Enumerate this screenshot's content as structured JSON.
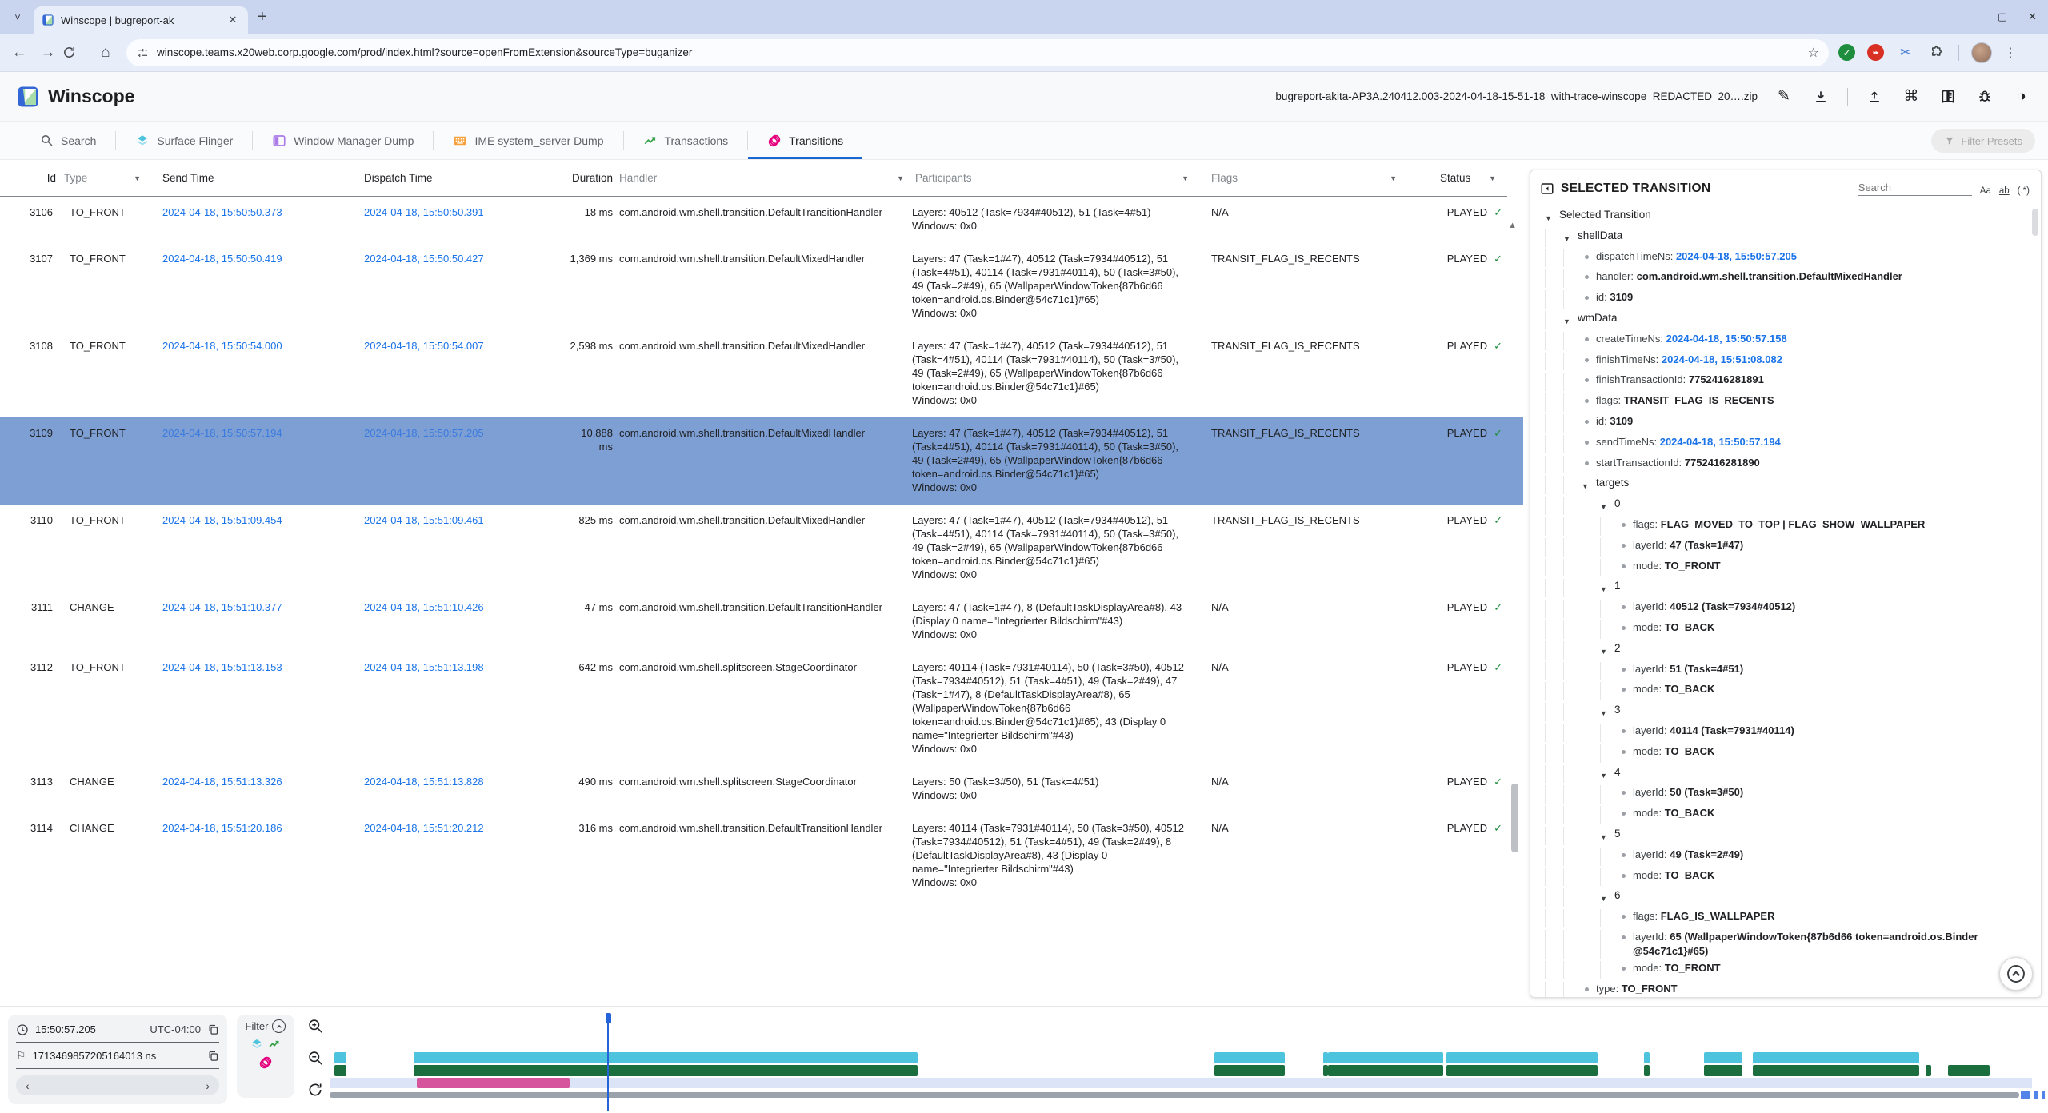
{
  "browser": {
    "tab_title": "Winscope | bugreport-ak",
    "url": "winscope.teams.x20web.corp.google.com/prod/index.html?source=openFromExtension&sourceType=buganizer"
  },
  "header": {
    "app_title": "Winscope",
    "trace_file": "bugreport-akita-AP3A.240412.003-2024-04-18-15-51-18_with-trace-winscope_REDACTED_20….zip"
  },
  "tabs": {
    "items": [
      {
        "label": "Search"
      },
      {
        "label": "Surface Flinger"
      },
      {
        "label": "Window Manager Dump"
      },
      {
        "label": "IME system_server Dump"
      },
      {
        "label": "Transactions"
      },
      {
        "label": "Transitions",
        "active": true
      }
    ],
    "filter_presets": "Filter Presets"
  },
  "table": {
    "columns": [
      "Id",
      "Type",
      "Send Time",
      "Dispatch Time",
      "Duration",
      "Handler",
      "Participants",
      "Flags",
      "Status"
    ],
    "rows": [
      {
        "id": "3106",
        "type": "TO_FRONT",
        "send": "2024-04-18, 15:50:50.373",
        "dispatch": "2024-04-18, 15:50:50.391",
        "duration": "18 ms",
        "handler": "com.android.wm.shell.transition.DefaultTransitionHandler",
        "layers": "Layers: 40512 (Task=7934#40512), 51 (Task=4#51)",
        "windows": "Windows: 0x0",
        "flags": "N/A",
        "status": "PLAYED"
      },
      {
        "id": "3107",
        "type": "TO_FRONT",
        "send": "2024-04-18, 15:50:50.419",
        "dispatch": "2024-04-18, 15:50:50.427",
        "duration": "1,369 ms",
        "handler": "com.android.wm.shell.transition.DefaultMixedHandler",
        "layers": "Layers: 47 (Task=1#47), 40512 (Task=7934#40512), 51 (Task=4#51), 40114 (Task=7931#40114), 50 (Task=3#50), 49 (Task=2#49), 65 (WallpaperWindowToken{87b6d66 token=android.os.Binder@54c71c1}#65)",
        "windows": "Windows: 0x0",
        "flags": "TRANSIT_FLAG_IS_RECENTS",
        "status": "PLAYED"
      },
      {
        "id": "3108",
        "type": "TO_FRONT",
        "send": "2024-04-18, 15:50:54.000",
        "dispatch": "2024-04-18, 15:50:54.007",
        "duration": "2,598 ms",
        "handler": "com.android.wm.shell.transition.DefaultMixedHandler",
        "layers": "Layers: 47 (Task=1#47), 40512 (Task=7934#40512), 51 (Task=4#51), 40114 (Task=7931#40114), 50 (Task=3#50), 49 (Task=2#49), 65 (WallpaperWindowToken{87b6d66 token=android.os.Binder@54c71c1}#65)",
        "windows": "Windows: 0x0",
        "flags": "TRANSIT_FLAG_IS_RECENTS",
        "status": "PLAYED"
      },
      {
        "id": "3109",
        "type": "TO_FRONT",
        "send": "2024-04-18, 15:50:57.194",
        "dispatch": "2024-04-18, 15:50:57.205",
        "duration": "10,888 ms",
        "handler": "com.android.wm.shell.transition.DefaultMixedHandler",
        "layers": "Layers: 47 (Task=1#47), 40512 (Task=7934#40512), 51 (Task=4#51), 40114 (Task=7931#40114), 50 (Task=3#50), 49 (Task=2#49), 65 (WallpaperWindowToken{87b6d66 token=android.os.Binder@54c71c1}#65)",
        "windows": "Windows: 0x0",
        "flags": "TRANSIT_FLAG_IS_RECENTS",
        "status": "PLAYED",
        "selected": true
      },
      {
        "id": "3110",
        "type": "TO_FRONT",
        "send": "2024-04-18, 15:51:09.454",
        "dispatch": "2024-04-18, 15:51:09.461",
        "duration": "825 ms",
        "handler": "com.android.wm.shell.transition.DefaultMixedHandler",
        "layers": "Layers: 47 (Task=1#47), 40512 (Task=7934#40512), 51 (Task=4#51), 40114 (Task=7931#40114), 50 (Task=3#50), 49 (Task=2#49), 65 (WallpaperWindowToken{87b6d66 token=android.os.Binder@54c71c1}#65)",
        "windows": "Windows: 0x0",
        "flags": "TRANSIT_FLAG_IS_RECENTS",
        "status": "PLAYED"
      },
      {
        "id": "3111",
        "type": "CHANGE",
        "send": "2024-04-18, 15:51:10.377",
        "dispatch": "2024-04-18, 15:51:10.426",
        "duration": "47 ms",
        "handler": "com.android.wm.shell.transition.DefaultTransitionHandler",
        "layers": "Layers: 47 (Task=1#47), 8 (DefaultTaskDisplayArea#8), 43 (Display 0 name=\"Integrierter Bildschirm\"#43)",
        "windows": "Windows: 0x0",
        "flags": "N/A",
        "status": "PLAYED"
      },
      {
        "id": "3112",
        "type": "TO_FRONT",
        "send": "2024-04-18, 15:51:13.153",
        "dispatch": "2024-04-18, 15:51:13.198",
        "duration": "642 ms",
        "handler": "com.android.wm.shell.splitscreen.StageCoordinator",
        "layers": "Layers: 40114 (Task=7931#40114), 50 (Task=3#50), 40512 (Task=7934#40512), 51 (Task=4#51), 49 (Task=2#49), 47 (Task=1#47), 8 (DefaultTaskDisplayArea#8), 65 (WallpaperWindowToken{87b6d66 token=android.os.Binder@54c71c1}#65), 43 (Display 0 name=\"Integrierter Bildschirm\"#43)",
        "windows": "Windows: 0x0",
        "flags": "N/A",
        "status": "PLAYED"
      },
      {
        "id": "3113",
        "type": "CHANGE",
        "send": "2024-04-18, 15:51:13.326",
        "dispatch": "2024-04-18, 15:51:13.828",
        "duration": "490 ms",
        "handler": "com.android.wm.shell.splitscreen.StageCoordinator",
        "layers": "Layers: 50 (Task=3#50), 51 (Task=4#51)",
        "windows": "Windows: 0x0",
        "flags": "N/A",
        "status": "PLAYED"
      },
      {
        "id": "3114",
        "type": "CHANGE",
        "send": "2024-04-18, 15:51:20.186",
        "dispatch": "2024-04-18, 15:51:20.212",
        "duration": "316 ms",
        "handler": "com.android.wm.shell.transition.DefaultTransitionHandler",
        "layers": "Layers: 40114 (Task=7931#40114), 50 (Task=3#50), 40512 (Task=7934#40512), 51 (Task=4#51), 49 (Task=2#49), 8 (DefaultTaskDisplayArea#8), 43 (Display 0 name=\"Integrierter Bildschirm\"#43)",
        "windows": "Windows: 0x0",
        "flags": "N/A",
        "status": "PLAYED"
      }
    ]
  },
  "details": {
    "title": "SELECTED TRANSITION",
    "search_placeholder": "Search",
    "match_case": "Aa",
    "match_word": "ab",
    "regex": "(.*)",
    "tree": [
      {
        "d": 0,
        "exp": true,
        "key": "Selected Transition"
      },
      {
        "d": 1,
        "exp": true,
        "key": "shellData"
      },
      {
        "d": 2,
        "key": "dispatchTimeNs",
        "v": "2024-04-18, 15:50:57.205",
        "t": true
      },
      {
        "d": 2,
        "key": "handler",
        "v": "com.android.wm.shell.transition.DefaultMixedHandler"
      },
      {
        "d": 2,
        "key": "id",
        "v": "3109"
      },
      {
        "d": 1,
        "exp": true,
        "key": "wmData"
      },
      {
        "d": 2,
        "key": "createTimeNs",
        "v": "2024-04-18, 15:50:57.158",
        "t": true
      },
      {
        "d": 2,
        "key": "finishTimeNs",
        "v": "2024-04-18, 15:51:08.082",
        "t": true
      },
      {
        "d": 2,
        "key": "finishTransactionId",
        "v": "7752416281891"
      },
      {
        "d": 2,
        "key": "flags",
        "v": "TRANSIT_FLAG_IS_RECENTS"
      },
      {
        "d": 2,
        "key": "id",
        "v": "3109"
      },
      {
        "d": 2,
        "key": "sendTimeNs",
        "v": "2024-04-18, 15:50:57.194",
        "t": true
      },
      {
        "d": 2,
        "key": "startTransactionId",
        "v": "7752416281890"
      },
      {
        "d": 2,
        "exp": true,
        "key": "targets"
      },
      {
        "d": 3,
        "exp": true,
        "key": "0"
      },
      {
        "d": 4,
        "key": "flags",
        "v": "FLAG_MOVED_TO_TOP | FLAG_SHOW_WALLPAPER"
      },
      {
        "d": 4,
        "key": "layerId",
        "v": "47 (Task=1#47)"
      },
      {
        "d": 4,
        "key": "mode",
        "v": "TO_FRONT"
      },
      {
        "d": 3,
        "exp": true,
        "key": "1"
      },
      {
        "d": 4,
        "key": "layerId",
        "v": "40512 (Task=7934#40512)"
      },
      {
        "d": 4,
        "key": "mode",
        "v": "TO_BACK"
      },
      {
        "d": 3,
        "exp": true,
        "key": "2"
      },
      {
        "d": 4,
        "key": "layerId",
        "v": "51 (Task=4#51)"
      },
      {
        "d": 4,
        "key": "mode",
        "v": "TO_BACK"
      },
      {
        "d": 3,
        "exp": true,
        "key": "3"
      },
      {
        "d": 4,
        "key": "layerId",
        "v": "40114 (Task=7931#40114)"
      },
      {
        "d": 4,
        "key": "mode",
        "v": "TO_BACK"
      },
      {
        "d": 3,
        "exp": true,
        "key": "4"
      },
      {
        "d": 4,
        "key": "layerId",
        "v": "50 (Task=3#50)"
      },
      {
        "d": 4,
        "key": "mode",
        "v": "TO_BACK"
      },
      {
        "d": 3,
        "exp": true,
        "key": "5"
      },
      {
        "d": 4,
        "key": "layerId",
        "v": "49 (Task=2#49)"
      },
      {
        "d": 4,
        "key": "mode",
        "v": "TO_BACK"
      },
      {
        "d": 3,
        "exp": true,
        "key": "6"
      },
      {
        "d": 4,
        "key": "flags",
        "v": "FLAG_IS_WALLPAPER"
      },
      {
        "d": 4,
        "key": "layerId",
        "v": "65 (WallpaperWindowToken{87b6d66 token=android.os.Binder @54c71c1}#65)"
      },
      {
        "d": 4,
        "key": "mode",
        "v": "TO_FRONT"
      },
      {
        "d": 2,
        "key": "type",
        "v": "TO_FRONT"
      }
    ]
  },
  "timeline": {
    "current_time": "15:50:57.205",
    "timezone": "UTC-04:00",
    "timestamp_ns": "1713469857205164013 ns",
    "filter_label": "Filter",
    "cursor": 0.1615,
    "segments": [
      {
        "s": 0.003,
        "e": 0.01,
        "c": 1,
        "g": 1
      },
      {
        "s": 0.049,
        "e": 0.342,
        "c": 1,
        "g": 1
      },
      {
        "s": 0.515,
        "e": 0.556,
        "c": 1,
        "g": 1
      },
      {
        "s": 0.578,
        "e": 0.581,
        "c": 1,
        "g": 1
      },
      {
        "s": 0.581,
        "e": 0.648,
        "c": 1,
        "g": 1
      },
      {
        "s": 0.65,
        "e": 0.738,
        "c": 1,
        "g": 1
      },
      {
        "s": 0.765,
        "e": 0.768,
        "c": 1,
        "g": 1
      },
      {
        "s": 0.8,
        "e": 0.822,
        "c": 1,
        "g": 1
      },
      {
        "s": 0.828,
        "e": 0.925,
        "c": 1,
        "g": 1
      },
      {
        "s": 0.929,
        "e": 0.932,
        "c": 0,
        "g": 1
      },
      {
        "s": 0.942,
        "e": 0.966,
        "c": 0,
        "g": 1
      }
    ],
    "transition_segments": [
      {
        "s": 0.051,
        "e": 0.141
      }
    ],
    "lavender_end": 0.9907,
    "scroll_end": 0.9832,
    "handle": [
      0.9842,
      0.9892
    ],
    "ticks": [
      0.992,
      0.9965
    ]
  },
  "icons": {
    "back_arrow": "←",
    "forward_arrow": "→",
    "home": "⌂",
    "overflow": "⋮",
    "scissors": "✂",
    "star": "☆",
    "command": "⌘",
    "theme_toggle": "◑",
    "pencil": "✎",
    "minimize": "—",
    "maximize": "▢",
    "close": "✕",
    "tab_close": "✕",
    "new_tab": "+",
    "tab_search_chevron": "˅",
    "flag": "⚐",
    "prev": "‹",
    "next": "›",
    "check": "✓",
    "dropdown": "▼",
    "scroll_up": "▲",
    "fast_forward": "▸▸",
    "ext_check": "✓"
  },
  "colors": {
    "accent_blue": "#1967d2",
    "link_blue": "#1a73e8",
    "selected_row": "#7d9fd3",
    "status_green": "#1e8e3e",
    "sf_cyan": "#4ec3dd",
    "tx_green": "#1b6e3e",
    "transitions_pink": "#e5007d",
    "timeline_pink": "#d6549c",
    "lavender": "#dbe5f7",
    "wm_purple": "#ab7be8",
    "ime_orange": "#f6a13c"
  }
}
